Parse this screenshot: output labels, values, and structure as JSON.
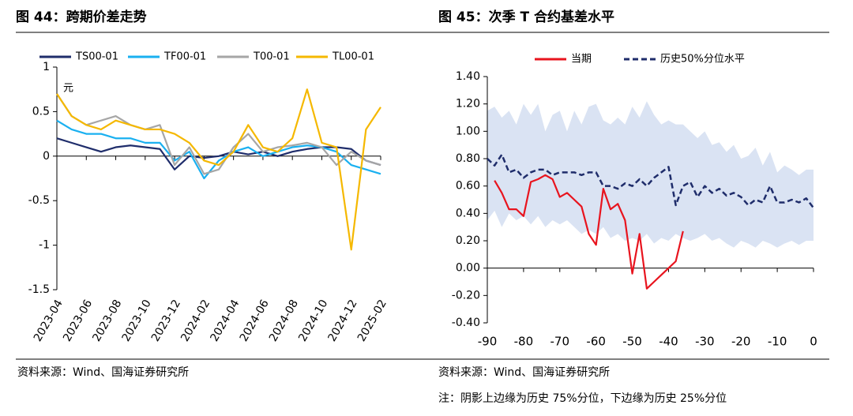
{
  "chart_data": [
    {
      "type": "line",
      "title": "图 44：跨期价差走势",
      "unit_label": "元",
      "source": "资料来源：Wind、国海证券研究所",
      "x": [
        "2023-04",
        "2023-05",
        "2023-06",
        "2023-07",
        "2023-08",
        "2023-09",
        "2023-10",
        "2023-11",
        "2023-12",
        "2024-01",
        "2024-02",
        "2024-03",
        "2024-04",
        "2024-05",
        "2024-06",
        "2024-07",
        "2024-08",
        "2024-09",
        "2024-10",
        "2024-11",
        "2024-12",
        "2025-01",
        "2025-02"
      ],
      "xticks": [
        "2023-04",
        "2023-06",
        "2023-08",
        "2023-10",
        "2023-12",
        "2024-02",
        "2024-04",
        "2024-06",
        "2024-08",
        "2024-10",
        "2024-12",
        "2025-02"
      ],
      "ylim": [
        -1.5,
        1
      ],
      "yticks": [
        1,
        0.5,
        0,
        -0.5,
        -1,
        -1.5
      ],
      "series": [
        {
          "name": "TS00-01",
          "color": "#1f2d6b",
          "values": [
            0.2,
            0.15,
            0.1,
            0.05,
            0.1,
            0.12,
            0.1,
            0.08,
            -0.15,
            0.0,
            -0.02,
            0.0,
            0.05,
            0.02,
            0.05,
            0.0,
            0.05,
            0.08,
            0.1,
            0.1,
            0.08,
            -0.05,
            -0.1
          ]
        },
        {
          "name": "TF00-01",
          "color": "#1ab0f0",
          "values": [
            0.4,
            0.3,
            0.25,
            0.25,
            0.2,
            0.2,
            0.15,
            0.15,
            -0.05,
            0.05,
            -0.25,
            -0.05,
            0.05,
            0.1,
            0.0,
            0.05,
            0.1,
            0.12,
            0.1,
            0.05,
            -0.1,
            -0.15,
            -0.2
          ]
        },
        {
          "name": "T00-01",
          "color": "#a6a6a6",
          "values": [
            0.7,
            0.45,
            0.35,
            0.4,
            0.45,
            0.35,
            0.3,
            0.35,
            -0.1,
            0.1,
            -0.2,
            -0.15,
            0.1,
            0.25,
            0.05,
            0.1,
            0.12,
            0.15,
            0.1,
            -0.1,
            0.05,
            -0.05,
            -0.1
          ]
        },
        {
          "name": "TL00-01",
          "color": "#f5b800",
          "values": [
            0.7,
            0.45,
            0.35,
            0.3,
            0.4,
            0.35,
            0.3,
            0.3,
            0.25,
            0.15,
            -0.05,
            -0.1,
            0.05,
            0.35,
            0.1,
            0.05,
            0.2,
            0.75,
            0.15,
            0.1,
            -1.05,
            0.3,
            0.55
          ]
        }
      ]
    },
    {
      "type": "line",
      "title": "图 45：次季 T 合约基差水平",
      "source": "资料来源：Wind、国海证券研究所",
      "note": "注：阴影上边缘为历史 75%分位，下边缘为历史 25%分位",
      "x": [
        -90,
        -88,
        -86,
        -84,
        -82,
        -80,
        -78,
        -76,
        -74,
        -72,
        -70,
        -68,
        -66,
        -64,
        -62,
        -60,
        -58,
        -56,
        -54,
        -52,
        -50,
        -48,
        -46,
        -44,
        -42,
        -40,
        -38,
        -36,
        -34,
        -32,
        -30,
        -28,
        -26,
        -24,
        -22,
        -20,
        -18,
        -16,
        -14,
        -12,
        -10,
        -8,
        -6,
        -4,
        -2,
        0
      ],
      "xlim": [
        -90,
        0
      ],
      "xticks": [
        -90,
        -80,
        -70,
        -60,
        -50,
        -40,
        -30,
        -20,
        -10,
        0
      ],
      "ylim": [
        -0.4,
        1.4
      ],
      "yticks": [
        {
          "value": 1.4,
          "label": "1.40"
        },
        {
          "value": 1.2,
          "label": "1.20"
        },
        {
          "value": 1.0,
          "label": "1.00"
        },
        {
          "value": 0.8,
          "label": "0.80"
        },
        {
          "value": 0.6,
          "label": "0.60"
        },
        {
          "value": 0.4,
          "label": "0.40"
        },
        {
          "value": 0.2,
          "label": "0.20"
        },
        {
          "value": 0,
          "label": "0.00"
        },
        {
          "value": -0.2,
          "label": "-0.20"
        },
        {
          "value": -0.4,
          "label": "-0.40"
        }
      ],
      "band": {
        "color": "#dae3f3",
        "upper": [
          1.15,
          1.18,
          1.1,
          1.15,
          1.05,
          1.2,
          1.12,
          1.2,
          1.0,
          1.12,
          1.15,
          1.0,
          1.15,
          1.05,
          1.18,
          1.2,
          1.08,
          1.05,
          1.1,
          1.05,
          1.18,
          1.1,
          1.22,
          1.12,
          1.05,
          1.08,
          1.05,
          1.05,
          1.0,
          0.95,
          1.0,
          0.9,
          0.92,
          0.85,
          0.9,
          0.8,
          0.82,
          0.88,
          0.75,
          0.85,
          0.7,
          0.75,
          0.72,
          0.68,
          0.72,
          0.72
        ],
        "lower": [
          0.35,
          0.42,
          0.3,
          0.4,
          0.35,
          0.38,
          0.32,
          0.38,
          0.3,
          0.35,
          0.32,
          0.35,
          0.3,
          0.25,
          0.28,
          0.25,
          0.3,
          0.22,
          0.25,
          0.2,
          0.22,
          0.2,
          0.25,
          0.18,
          0.22,
          0.2,
          0.25,
          0.22,
          0.2,
          0.22,
          0.25,
          0.2,
          0.22,
          0.18,
          0.15,
          0.2,
          0.18,
          0.15,
          0.2,
          0.18,
          0.15,
          0.18,
          0.2,
          0.17,
          0.2,
          0.2
        ]
      },
      "series": [
        {
          "name": "当期",
          "color": "#e8141e",
          "values": [
            null,
            0.64,
            0.55,
            0.43,
            0.43,
            0.38,
            0.63,
            0.65,
            0.68,
            0.65,
            0.52,
            0.55,
            0.5,
            0.45,
            0.25,
            0.17,
            0.58,
            0.43,
            0.47,
            0.35,
            -0.04,
            0.25,
            -0.15,
            -0.1,
            -0.05,
            0.0,
            0.05,
            0.27,
            null,
            null,
            null,
            null,
            null,
            null,
            null,
            null,
            null,
            null,
            null,
            null,
            null,
            null,
            null,
            null,
            null,
            null
          ]
        },
        {
          "name": "历史50%分位水平",
          "color": "#1f2d6b",
          "dashed": true,
          "values": [
            0.8,
            0.75,
            0.83,
            0.7,
            0.72,
            0.66,
            0.7,
            0.72,
            0.72,
            0.68,
            0.7,
            0.7,
            0.7,
            0.68,
            0.7,
            0.7,
            0.6,
            0.6,
            0.58,
            0.62,
            0.6,
            0.65,
            0.6,
            0.66,
            0.7,
            0.74,
            0.46,
            0.6,
            0.63,
            0.52,
            0.6,
            0.55,
            0.58,
            0.53,
            0.55,
            0.52,
            0.46,
            0.5,
            0.48,
            0.6,
            0.48,
            0.48,
            0.5,
            0.48,
            0.51,
            0.44
          ]
        }
      ]
    }
  ]
}
